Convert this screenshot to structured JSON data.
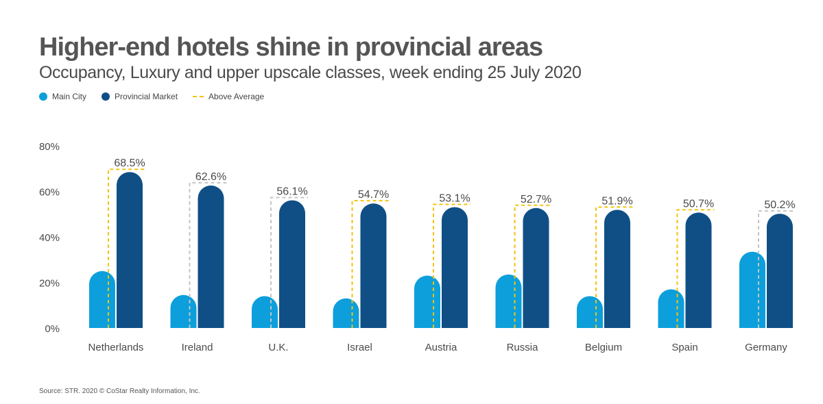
{
  "title": "Higher-end hotels shine in provincial areas",
  "subtitle": "Occupancy, Luxury and upper upscale classes, week ending 25 July 2020",
  "legend": {
    "main_city": "Main City",
    "provincial": "Provincial Market",
    "above_average": "Above Average"
  },
  "colors": {
    "main_city": "#0c9fdb",
    "provincial": "#0f4f86",
    "above_average": "#f4c20d",
    "not_above_average": "#c4c4c4"
  },
  "source": "Source: STR. 2020 © CoStar Realty Information, Inc.",
  "chart_data": {
    "type": "bar",
    "categories": [
      "Netherlands",
      "Ireland",
      "U.K.",
      "Israel",
      "Austria",
      "Russia",
      "Belgium",
      "Spain",
      "Germany"
    ],
    "series": [
      {
        "name": "Main City",
        "values": [
          25,
          14.5,
          14,
          13,
          23,
          23.5,
          14,
          17,
          33.5
        ]
      },
      {
        "name": "Provincial Market",
        "values": [
          68.5,
          62.6,
          56.1,
          54.7,
          53.1,
          52.7,
          51.9,
          50.7,
          50.2
        ],
        "labels": [
          "68.5%",
          "62.6%",
          "56.1%",
          "54.7%",
          "53.1%",
          "52.7%",
          "51.9%",
          "50.7%",
          "50.2%"
        ]
      }
    ],
    "above_average": [
      true,
      false,
      false,
      true,
      true,
      true,
      true,
      true,
      false
    ],
    "yticks": [
      "0%",
      "20%",
      "40%",
      "60%",
      "80%"
    ],
    "ytick_values": [
      0,
      20,
      40,
      60,
      80
    ],
    "ylim": [
      0,
      80
    ],
    "xlabel": "",
    "ylabel": "",
    "grid": false
  }
}
